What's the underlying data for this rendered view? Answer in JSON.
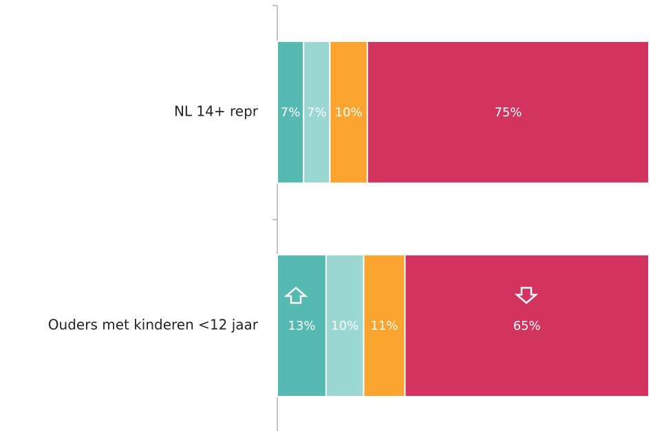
{
  "chart_data": {
    "type": "stacked-bar-horizontal",
    "categories": [
      "NL 14+ repr",
      "Ouders met kinderen <12 jaar"
    ],
    "series": [
      {
        "color": "#56b9b2",
        "values": [
          7,
          13
        ],
        "value_labels": [
          "7%",
          "13%"
        ]
      },
      {
        "color": "#9ad7d3",
        "values": [
          7,
          10
        ],
        "value_labels": [
          "7%",
          "10%"
        ]
      },
      {
        "color": "#fba530",
        "values": [
          10,
          11
        ],
        "value_labels": [
          "10%",
          "11%"
        ]
      },
      {
        "color": "#d3345f",
        "values": [
          75,
          65
        ],
        "value_labels": [
          "75%",
          "65%"
        ]
      }
    ],
    "xlim": [
      0,
      99
    ]
  }
}
